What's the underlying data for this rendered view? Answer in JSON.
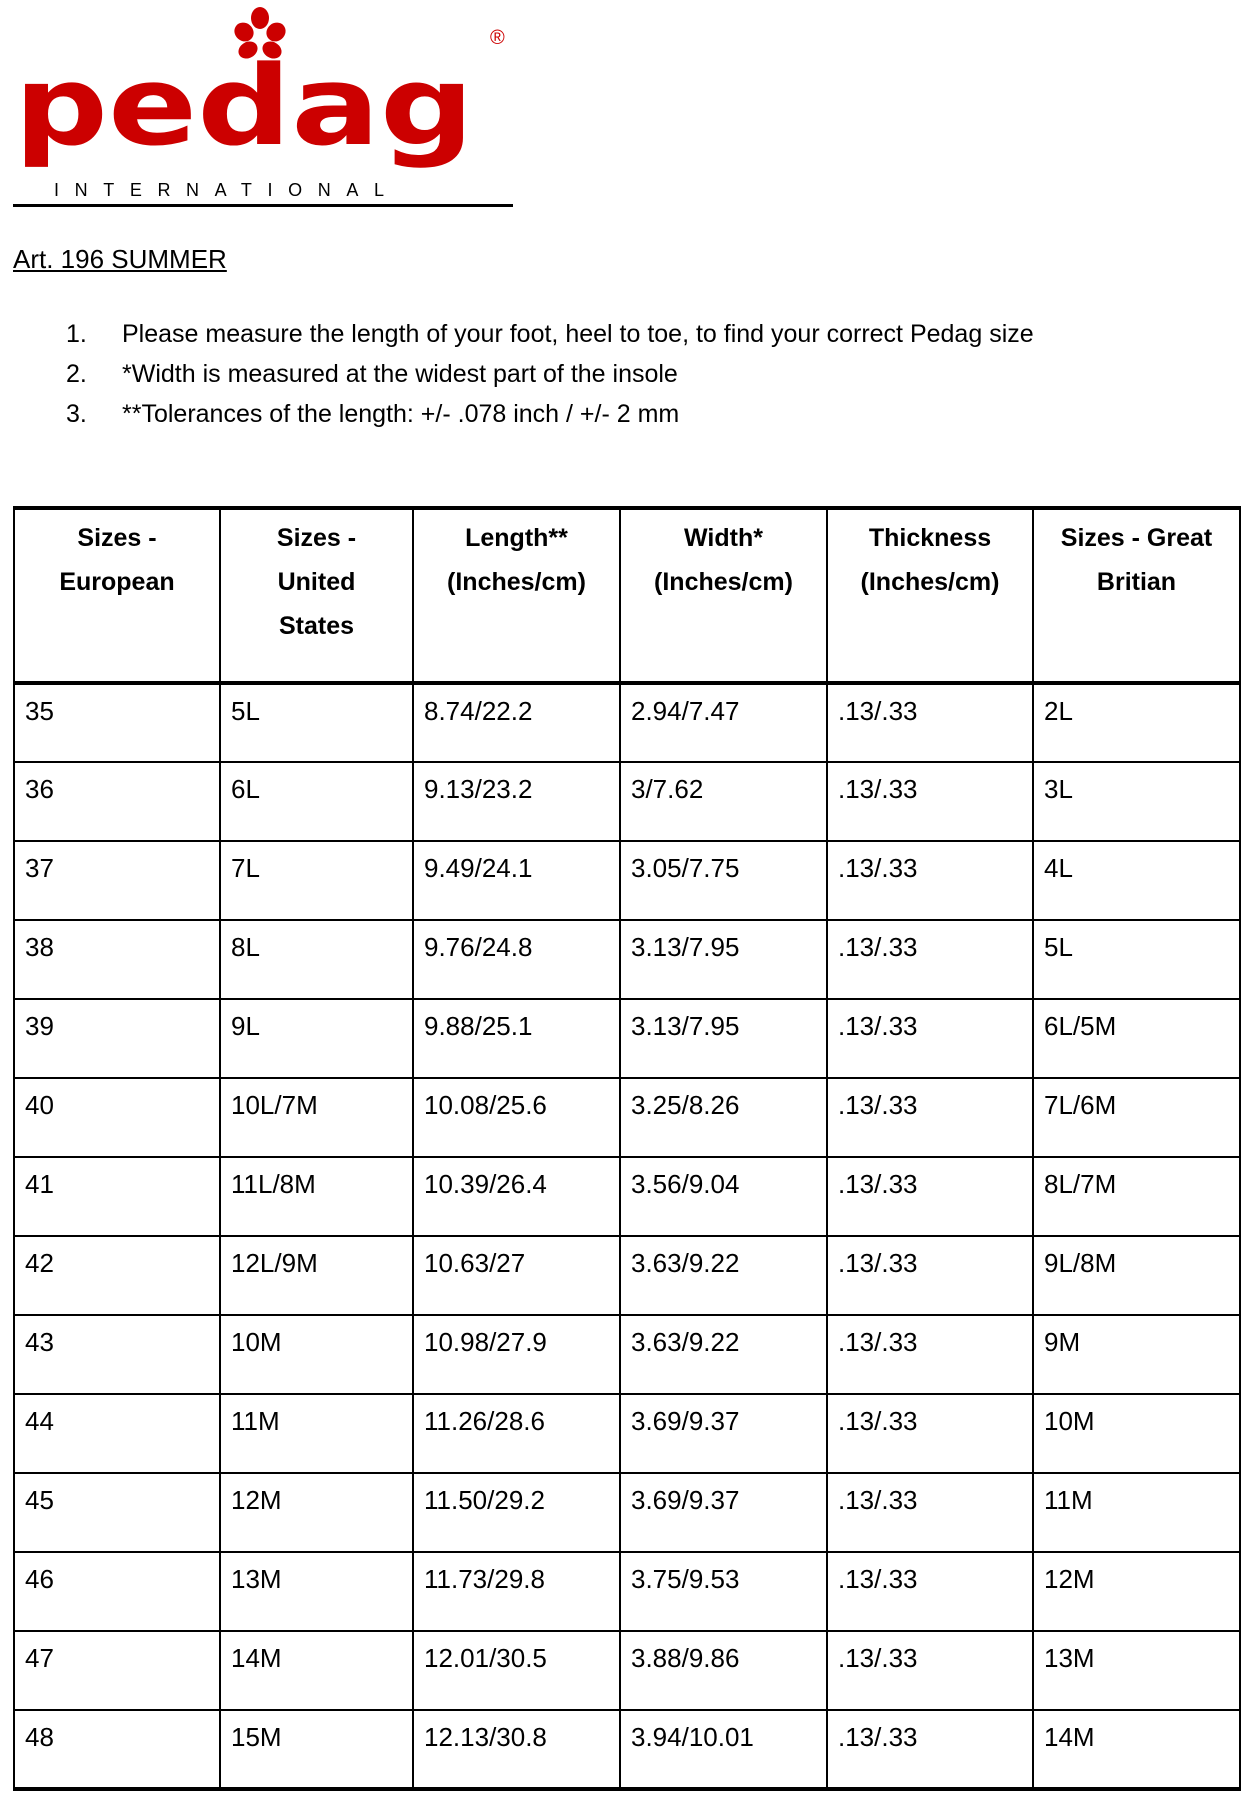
{
  "logo": {
    "brand": "pedag",
    "subtitle": "INTERNATIONAL",
    "registered": "®",
    "color": "#cc0000"
  },
  "title": "Art. 196 SUMMER",
  "notes": [
    {
      "num": "1.",
      "text": "Please measure the length of your foot, heel to toe, to find your correct Pedag size"
    },
    {
      "num": "2.",
      "text": "*Width is measured at the widest part of the insole"
    },
    {
      "num": "3.",
      "text": "**Tolerances of the length: +/- .078 inch / +/- 2 mm"
    }
  ],
  "table": {
    "headers": [
      [
        "Sizes -",
        "European"
      ],
      [
        "Sizes -",
        "United",
        "States"
      ],
      [
        "Length**",
        "(Inches/cm)"
      ],
      [
        "Width*",
        "(Inches/cm)"
      ],
      [
        "Thickness",
        "(Inches/cm)"
      ],
      [
        "Sizes - Great",
        "Britian"
      ]
    ],
    "rows": [
      [
        "35",
        "5L",
        "8.74/22.2",
        "2.94/7.47",
        ".13/.33",
        "2L"
      ],
      [
        "36",
        "6L",
        "9.13/23.2",
        "3/7.62",
        ".13/.33",
        "3L"
      ],
      [
        "37",
        "7L",
        "9.49/24.1",
        "3.05/7.75",
        ".13/.33",
        "4L"
      ],
      [
        "38",
        "8L",
        "9.76/24.8",
        "3.13/7.95",
        ".13/.33",
        "5L"
      ],
      [
        "39",
        "9L",
        "9.88/25.1",
        "3.13/7.95",
        ".13/.33",
        "6L/5M"
      ],
      [
        "40",
        "10L/7M",
        "10.08/25.6",
        "3.25/8.26",
        ".13/.33",
        "7L/6M"
      ],
      [
        "41",
        "11L/8M",
        "10.39/26.4",
        "3.56/9.04",
        ".13/.33",
        "8L/7M"
      ],
      [
        "42",
        "12L/9M",
        "10.63/27",
        "3.63/9.22",
        ".13/.33",
        "9L/8M"
      ],
      [
        "43",
        "10M",
        "10.98/27.9",
        "3.63/9.22",
        ".13/.33",
        "9M"
      ],
      [
        "44",
        "11M",
        "11.26/28.6",
        "3.69/9.37",
        ".13/.33",
        "10M"
      ],
      [
        "45",
        "12M",
        "11.50/29.2",
        "3.69/9.37",
        ".13/.33",
        "11M"
      ],
      [
        "46",
        "13M",
        "11.73/29.8",
        "3.75/9.53",
        ".13/.33",
        "12M"
      ],
      [
        "47",
        "14M",
        "12.01/30.5",
        "3.88/9.86",
        ".13/.33",
        "13M"
      ],
      [
        "48",
        "15M",
        "12.13/30.8",
        "3.94/10.01",
        ".13/.33",
        "14M"
      ]
    ]
  }
}
